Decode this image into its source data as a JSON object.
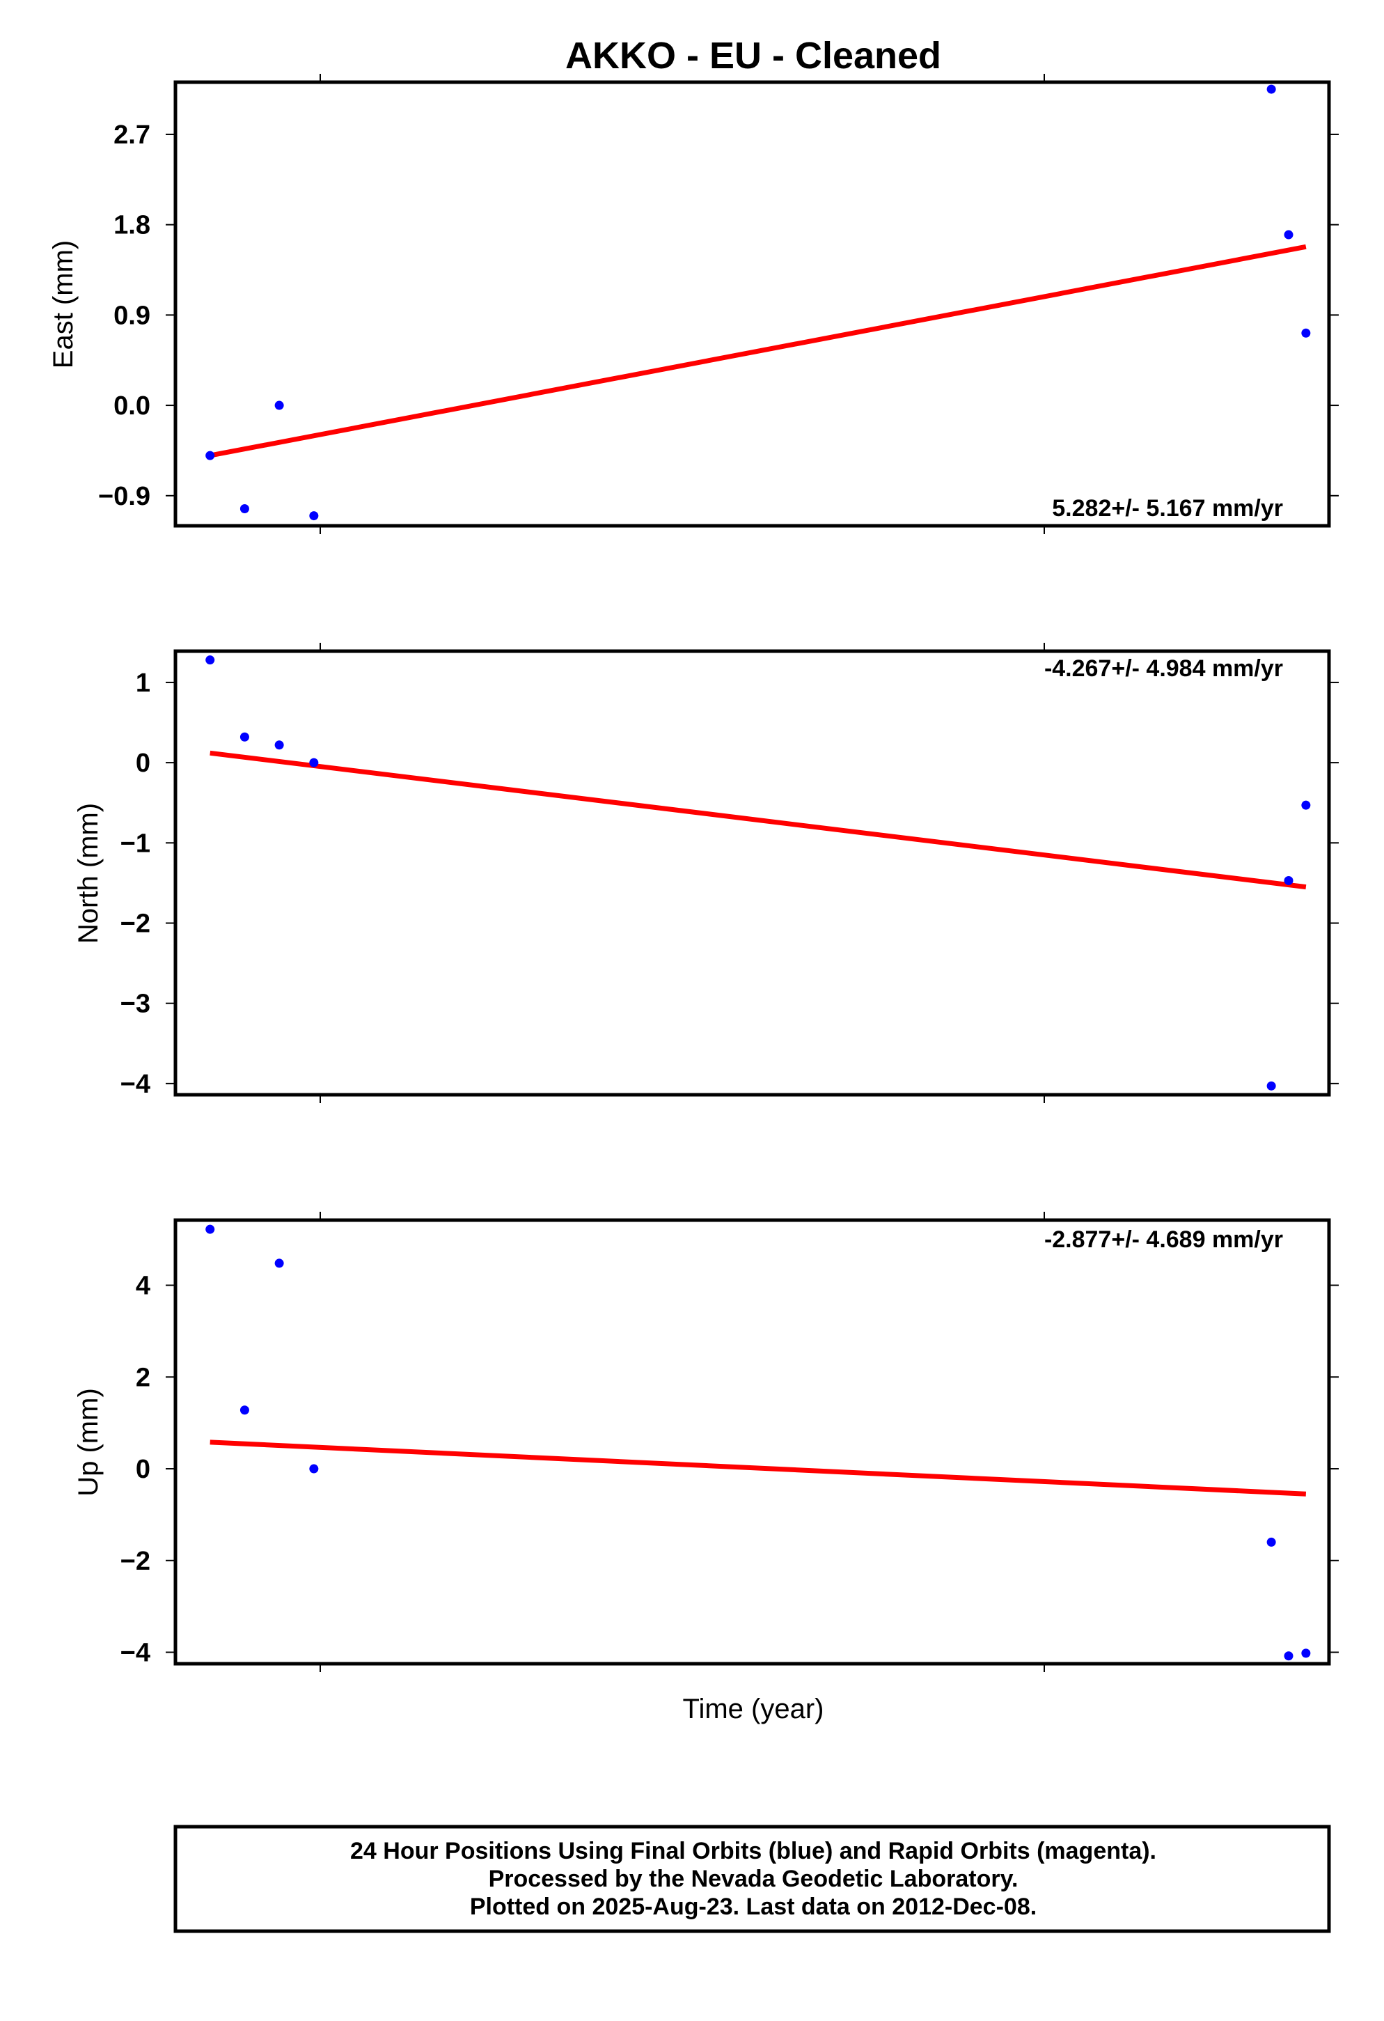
{
  "title": "AKKO  - EU - Cleaned",
  "xlabel": "Time (year)",
  "colors": {
    "points": "#0000ff",
    "trend": "#ff0000",
    "frame": "#000000"
  },
  "chart_data": [
    {
      "type": "scatter",
      "ylabel": "East (mm)",
      "ylim": [
        -1.2,
        3.22
      ],
      "yticks": [
        "2.7",
        "1.8",
        "0.9",
        "0.0",
        "−0.9"
      ],
      "ytick_values": [
        2.7,
        1.8,
        0.9,
        0.0,
        -0.9
      ],
      "rate": "5.282+/- 5.167 mm/yr",
      "rate_position": "bottom-right",
      "series": [
        {
          "values": [
            [
              0.03,
              -0.5
            ],
            [
              0.06,
              -1.03
            ],
            [
              0.09,
              0.0
            ],
            [
              0.12,
              -1.1
            ],
            [
              0.95,
              3.15
            ],
            [
              0.965,
              1.7
            ],
            [
              0.98,
              0.72
            ]
          ]
        }
      ],
      "trend": [
        [
          0.03,
          -0.5
        ],
        [
          0.98,
          1.58
        ]
      ]
    },
    {
      "type": "scatter",
      "ylabel": "North (mm)",
      "ylim": [
        -4.14,
        1.39
      ],
      "yticks": [
        "1",
        "0",
        "−1",
        "−2",
        "−3",
        "−4"
      ],
      "ytick_values": [
        1,
        0,
        -1,
        -2,
        -3,
        -4
      ],
      "rate": "-4.267+/- 4.984 mm/yr",
      "rate_position": "top-right",
      "series": [
        {
          "values": [
            [
              0.03,
              1.28
            ],
            [
              0.06,
              0.32
            ],
            [
              0.09,
              0.22
            ],
            [
              0.12,
              0.0
            ],
            [
              0.95,
              -4.03
            ],
            [
              0.965,
              -1.47
            ],
            [
              0.98,
              -0.53
            ]
          ]
        }
      ],
      "trend": [
        [
          0.03,
          0.12
        ],
        [
          0.98,
          -1.55
        ]
      ]
    },
    {
      "type": "scatter",
      "ylabel": "Up (mm)",
      "ylim": [
        -4.25,
        5.42
      ],
      "yticks": [
        "4",
        "2",
        "0",
        "−2",
        "−4"
      ],
      "ytick_values": [
        4,
        2,
        0,
        -2,
        -4
      ],
      "rate": "-2.877+/- 4.689 mm/yr",
      "rate_position": "top-right",
      "series": [
        {
          "values": [
            [
              0.03,
              5.22
            ],
            [
              0.06,
              1.28
            ],
            [
              0.09,
              4.48
            ],
            [
              0.12,
              0.0
            ],
            [
              0.95,
              -1.6
            ],
            [
              0.965,
              -4.08
            ],
            [
              0.98,
              -4.02
            ]
          ]
        }
      ],
      "trend": [
        [
          0.03,
          0.58
        ],
        [
          0.98,
          -0.55
        ]
      ]
    }
  ],
  "footer": {
    "line1": "24 Hour Positions Using Final Orbits (blue) and Rapid Orbits (magenta).",
    "line2": "Processed by the Nevada Geodetic Laboratory.",
    "line3": "Plotted on 2025-Aug-23. Last data on 2012-Dec-08."
  }
}
